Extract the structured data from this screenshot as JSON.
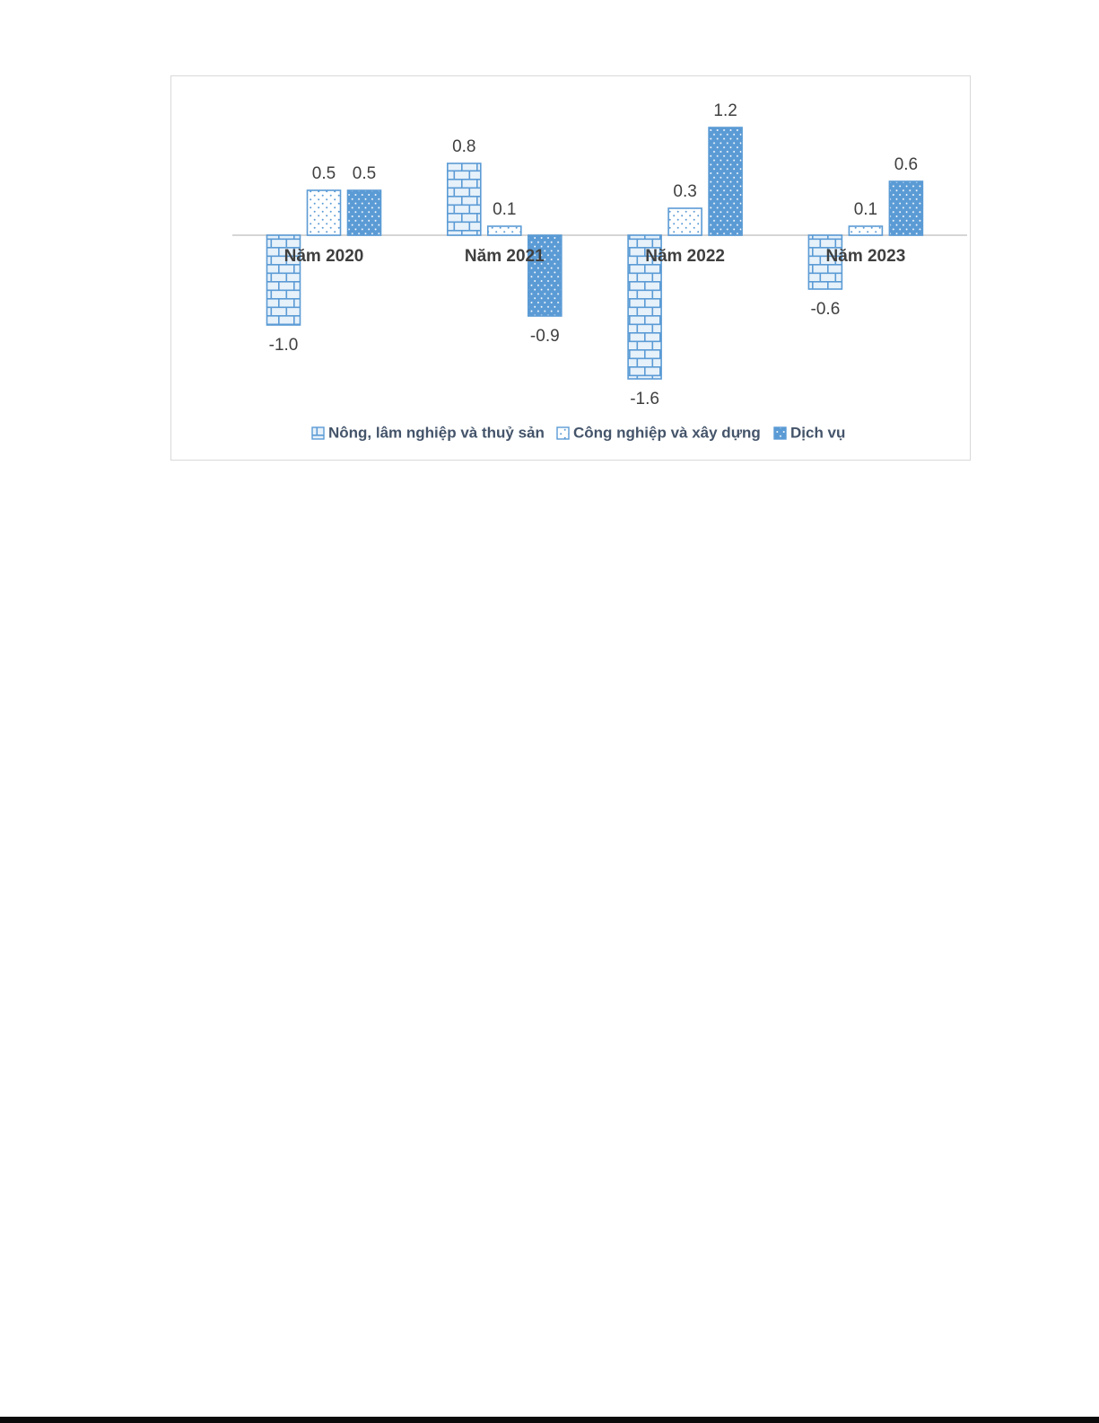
{
  "chart_data": {
    "type": "bar",
    "title": "",
    "categories": [
      "Năm 2020",
      "Năm 2021",
      "Năm 2022",
      "Năm 2023"
    ],
    "series": [
      {
        "name": "Nông, lâm nghiệp và thuỷ sản",
        "pattern": "brick",
        "values": [
          -1.0,
          0.8,
          -1.6,
          -0.6
        ],
        "labels": [
          "-1.0",
          "0.8",
          "-1.6",
          "-0.6"
        ]
      },
      {
        "name": "Công nghiệp và xây dựng",
        "pattern": "dots-light",
        "values": [
          0.5,
          0.1,
          0.3,
          0.1
        ],
        "labels": [
          "0.5",
          "0.1",
          "0.3",
          "0.1"
        ]
      },
      {
        "name": "Dịch vụ",
        "pattern": "dots-solid",
        "values": [
          0.5,
          -0.9,
          1.2,
          0.6
        ],
        "labels": [
          "0.5",
          "-0.9",
          "1.2",
          "0.6"
        ]
      }
    ],
    "value_labels": true,
    "xlabel": "",
    "ylabel": "",
    "ylim": [
      -1.6,
      1.2
    ],
    "grid": false,
    "legend_position": "bottom",
    "colors": {
      "bar_blue": "#5B9BD5",
      "brick_fill": "#E7F1FA",
      "pattern_white": "#FFFFFF",
      "axis_line": "#D6D6D6",
      "label_text": "#3F3F3F",
      "legend_text": "#44546A"
    }
  }
}
